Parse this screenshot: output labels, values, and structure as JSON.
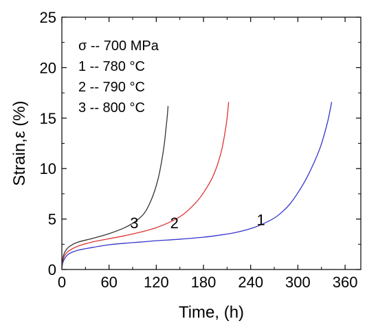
{
  "chart_data": {
    "type": "line",
    "xlabel": "Time, (h)",
    "ylabel": "Strain,ε (%)",
    "xlim": [
      0,
      380
    ],
    "ylim": [
      0,
      25
    ],
    "x_ticks": [
      "0",
      "60",
      "120",
      "180",
      "240",
      "300",
      "360"
    ],
    "y_ticks": [
      "0",
      "5",
      "10",
      "15",
      "20",
      "25"
    ],
    "grid": false,
    "legend_position": "top-left",
    "legend": [
      "σ -- 700 MPa",
      "1 -- 780 °C",
      "2 -- 790 °C",
      "3 -- 800 °C"
    ],
    "series": [
      {
        "curve_label": "1",
        "color": "#3333cc",
        "x": [
          0,
          1,
          3,
          6,
          10,
          20,
          40,
          60,
          80,
          100,
          120,
          150,
          180,
          200,
          220,
          240,
          255,
          270,
          280,
          290,
          300,
          310,
          320,
          328,
          334,
          338,
          341,
          343
        ],
        "y": [
          0,
          0.6,
          1.0,
          1.35,
          1.6,
          1.9,
          2.2,
          2.45,
          2.6,
          2.72,
          2.85,
          3.0,
          3.2,
          3.4,
          3.65,
          4.05,
          4.5,
          5.1,
          5.7,
          6.5,
          7.6,
          8.9,
          10.5,
          12.0,
          13.5,
          14.7,
          15.8,
          16.6
        ]
      },
      {
        "curve_label": "2",
        "color": "#dd3333",
        "x": [
          0,
          1,
          3,
          6,
          10,
          20,
          40,
          60,
          80,
          100,
          120,
          140,
          155,
          170,
          180,
          190,
          197,
          203,
          207,
          210,
          212
        ],
        "y": [
          0,
          0.8,
          1.3,
          1.65,
          1.9,
          2.3,
          2.75,
          3.05,
          3.35,
          3.7,
          4.15,
          4.8,
          5.5,
          6.6,
          7.6,
          8.9,
          10.2,
          11.8,
          13.4,
          15.0,
          16.6
        ]
      },
      {
        "curve_label": "3",
        "color": "#333333",
        "x": [
          0,
          1,
          3,
          6,
          10,
          20,
          40,
          60,
          80,
          95,
          105,
          112,
          118,
          123,
          127,
          130,
          132,
          134,
          135
        ],
        "y": [
          0,
          1.0,
          1.6,
          2.0,
          2.3,
          2.7,
          3.1,
          3.55,
          4.15,
          4.85,
          5.6,
          6.6,
          7.8,
          9.2,
          10.8,
          12.3,
          13.7,
          15.2,
          16.2
        ]
      }
    ]
  }
}
